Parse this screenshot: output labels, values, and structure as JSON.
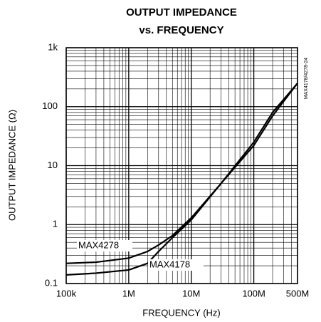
{
  "chart_data": {
    "type": "line",
    "title": "OUTPUT IMPEDANCE",
    "subtitle": "vs. FREQUENCY",
    "x_label": "FREQUENCY (Hz)",
    "y_label": "OUTPUT IMPEDANCE (Ω)",
    "side_note": "MAX4178/4278-24",
    "xscale": "log",
    "yscale": "log",
    "grid": true,
    "xlim": [
      100000,
      500000000
    ],
    "ylim": [
      0.1,
      1000
    ],
    "xticks": [
      {
        "value": 100000,
        "label": "100k"
      },
      {
        "value": 1000000,
        "label": "1M"
      },
      {
        "value": 10000000,
        "label": "10M"
      },
      {
        "value": 100000000,
        "label": "100M"
      },
      {
        "value": 500000000,
        "label": "500M"
      }
    ],
    "yticks": [
      0.1,
      1,
      10,
      100,
      {
        "value": 1000,
        "label": "1k"
      }
    ],
    "x": [
      100000,
      300000,
      1000000,
      2000000,
      3000000,
      5000000,
      10000000,
      30000000,
      100000000,
      200000000,
      500000000
    ],
    "series": [
      {
        "name": "MAX4278",
        "color": "#000000",
        "values": [
          0.22,
          0.23,
          0.27,
          0.35,
          0.45,
          0.65,
          1.3,
          5,
          25,
          80,
          250
        ]
      },
      {
        "name": "MAX4178",
        "color": "#000000",
        "values": [
          0.14,
          0.15,
          0.17,
          0.22,
          0.35,
          0.6,
          1.2,
          5,
          22,
          70,
          250
        ]
      }
    ]
  }
}
